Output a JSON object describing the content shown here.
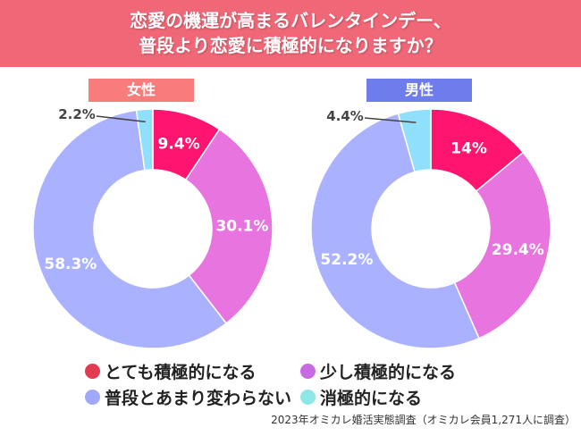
{
  "title_line1": "恋愛の機運が高まるバレンタインデー、",
  "title_line2": "普段より恋愛に積極的になりますか？",
  "colors": {
    "banner": "#f06878",
    "female_tag": "#f87c7c",
    "male_tag": "#6e7cec",
    "very": "#ff1470",
    "little": "#e874e0",
    "same": "#aab2ff",
    "less": "#90e0fc"
  },
  "legend": [
    {
      "label": "とても積極的になる",
      "color": "#e23a50"
    },
    {
      "label": "少し積極的になる",
      "color": "#c86ae2"
    },
    {
      "label": "普段とあまり変わらない",
      "color": "#a0a8fc"
    },
    {
      "label": "消極的になる",
      "color": "#8ee6e6"
    }
  ],
  "source": "2023年オミカレ婚活実態調査（オミカレ会員1,271人に調査）",
  "chart_data": [
    {
      "type": "pie",
      "variant": "donut",
      "title": "女性",
      "categories": [
        "とても積極的になる",
        "少し積極的になる",
        "普段とあまり変わらない",
        "消極的になる"
      ],
      "values": [
        9.4,
        30.1,
        58.3,
        2.2
      ],
      "labels": [
        "9.4%",
        "30.1%",
        "58.3%",
        "2.2%"
      ]
    },
    {
      "type": "pie",
      "variant": "donut",
      "title": "男性",
      "categories": [
        "とても積極的になる",
        "少し積極的になる",
        "普段とあまり変わらない",
        "消極的になる"
      ],
      "values": [
        14,
        29.4,
        52.2,
        4.4
      ],
      "labels": [
        "14%",
        "29.4%",
        "52.2%",
        "4.4%"
      ]
    }
  ]
}
